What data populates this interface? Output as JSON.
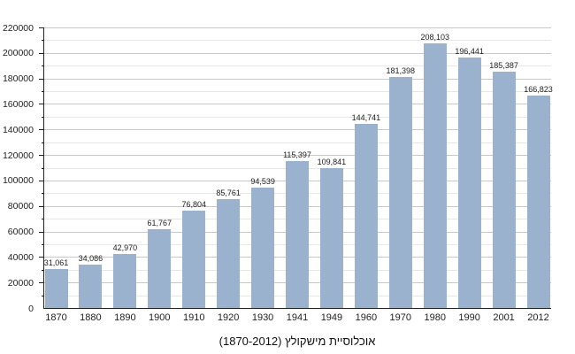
{
  "title": "אוכלוסיית מישקולץ (1870-2012)",
  "chart_data": {
    "type": "bar",
    "title": "אוכלוסיית מישקולץ (1870-2012)",
    "xlabel": "",
    "ylabel": "",
    "categories": [
      "1870",
      "1880",
      "1890",
      "1900",
      "1910",
      "1920",
      "1930",
      "1941",
      "1949",
      "1960",
      "1970",
      "1980",
      "1990",
      "2001",
      "2012"
    ],
    "values": [
      31061,
      34086,
      42970,
      61767,
      76804,
      85761,
      94539,
      115397,
      109841,
      144741,
      181398,
      208103,
      196441,
      185387,
      166823
    ],
    "value_labels": [
      "31,061",
      "34,086",
      "42,970",
      "61,767",
      "76,804",
      "85,761",
      "94,539",
      "115,397",
      "109,841",
      "144,741",
      "181,398",
      "208,103",
      "196,441",
      "185,387",
      "166,823"
    ],
    "ylim": [
      0,
      220000
    ],
    "y_major_ticks": [
      0,
      20000,
      40000,
      60000,
      80000,
      100000,
      120000,
      140000,
      160000,
      180000,
      200000,
      220000
    ],
    "y_minor_step": 10000,
    "grid": true,
    "legend_position": "none",
    "colors": {
      "bar": "#9ab2cd",
      "major_grid": "#c8c8c8",
      "minor_grid": "#e7e7e7",
      "axis": "#222222",
      "text": "#222222"
    }
  }
}
